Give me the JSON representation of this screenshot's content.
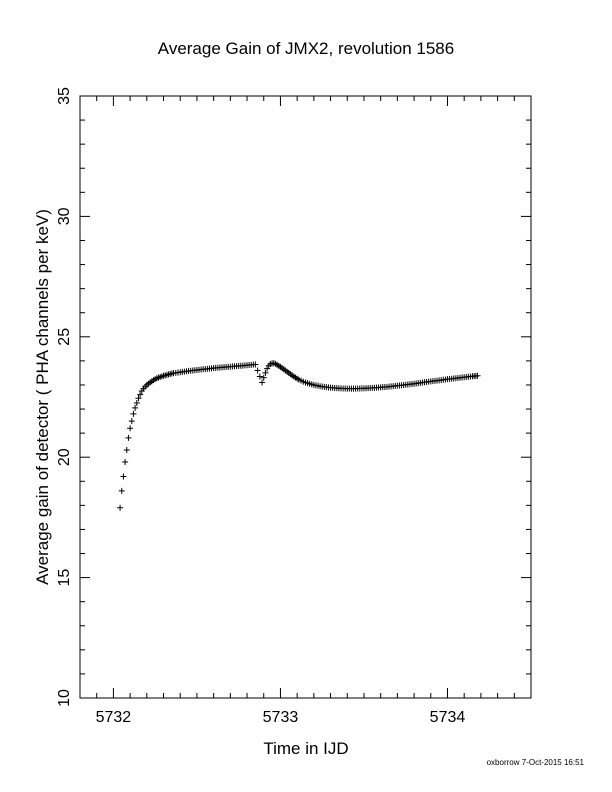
{
  "chart_data": {
    "type": "scatter",
    "title": "Average Gain of JMX2, revolution 1586",
    "xlabel": "Time in IJD",
    "ylabel": "Average gain of detector ( PHA channels per keV)",
    "xlim": [
      5731.8,
      5734.5
    ],
    "ylim": [
      10,
      35
    ],
    "x_ticks": [
      5732,
      5733,
      5734
    ],
    "y_ticks": [
      10,
      15,
      20,
      25,
      30,
      35
    ],
    "grid": false,
    "marker": "+",
    "series": [
      {
        "x": [
          5732.04,
          5732.05,
          5732.06,
          5732.07,
          5732.08,
          5732.09,
          5732.1,
          5732.11,
          5732.12,
          5732.13,
          5732.14,
          5732.15,
          5732.16,
          5732.17,
          5732.18,
          5732.2,
          5732.22,
          5732.24,
          5732.26,
          5732.28,
          5732.3,
          5732.33,
          5732.36,
          5732.4,
          5732.45,
          5732.5,
          5732.55,
          5732.6,
          5732.65,
          5732.7,
          5732.75,
          5732.8,
          5732.85,
          5732.89,
          5732.9,
          5732.91,
          5732.92,
          5732.93,
          5732.94,
          5732.95,
          5732.96,
          5732.97,
          5732.98,
          5733.0,
          5733.02,
          5733.05,
          5733.08,
          5733.11,
          5733.15,
          5733.2,
          5733.25,
          5733.3,
          5733.35,
          5733.4,
          5733.45,
          5733.5,
          5733.55,
          5733.6,
          5733.65,
          5733.7,
          5733.75,
          5733.8,
          5733.85,
          5733.9,
          5733.95,
          5734.0,
          5734.05,
          5734.1,
          5734.15,
          5734.18
        ],
        "y": [
          17.9,
          18.6,
          19.2,
          19.8,
          20.3,
          20.8,
          21.2,
          21.5,
          21.8,
          22.05,
          22.25,
          22.45,
          22.6,
          22.75,
          22.85,
          23.0,
          23.1,
          23.2,
          23.28,
          23.33,
          23.38,
          23.44,
          23.49,
          23.53,
          23.58,
          23.62,
          23.66,
          23.7,
          23.73,
          23.76,
          23.79,
          23.82,
          23.85,
          23.1,
          23.3,
          23.5,
          23.68,
          23.8,
          23.87,
          23.9,
          23.9,
          23.88,
          23.84,
          23.75,
          23.65,
          23.5,
          23.35,
          23.22,
          23.1,
          23.0,
          22.93,
          22.89,
          22.86,
          22.85,
          22.85,
          22.86,
          22.88,
          22.9,
          22.93,
          22.97,
          23.01,
          23.05,
          23.1,
          23.15,
          23.19,
          23.24,
          23.28,
          23.32,
          23.36,
          23.38
        ]
      }
    ]
  },
  "footer": {
    "text": "oxborrow  7-Oct-2015 16:51"
  }
}
